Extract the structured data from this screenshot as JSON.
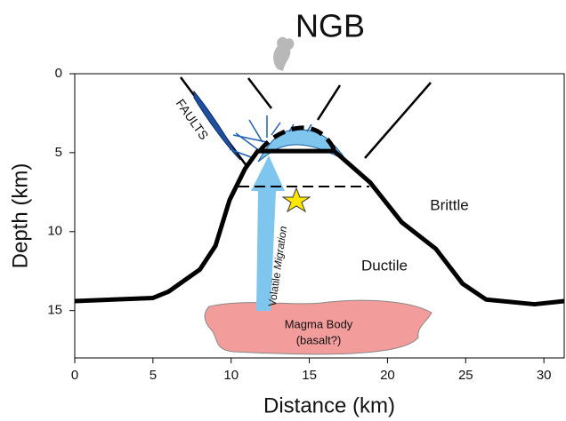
{
  "chart_data": {
    "type": "line",
    "title": "NGB",
    "x_label": "Distance (km)",
    "y_label": "Depth (km)",
    "x": [
      0,
      5,
      6,
      8,
      9,
      9.9,
      10.9,
      11.7,
      16.6,
      18.9,
      20.9,
      23.1,
      24.8,
      26.3,
      29.4,
      31.3
    ],
    "values": [
      14.4,
      14.2,
      13.8,
      12.4,
      10.9,
      8,
      6,
      4.9,
      4.9,
      6.9,
      9.4,
      11.1,
      13.3,
      14.3,
      14.6,
      14.4
    ],
    "color": "#000000",
    "xlim": [
      0,
      31.3
    ],
    "ylim": [
      18,
      0
    ],
    "xticks": [
      0,
      5,
      10,
      15,
      20,
      25,
      30
    ],
    "yticks": [
      0,
      5,
      10,
      15
    ],
    "annotations": {
      "faults": "FAULTS",
      "brittle": "Brittle",
      "ductile": "Ductile",
      "volatile": "Volatile",
      "migration": "Migration",
      "magma": "Magma Body",
      "basalt": "(basalt?)"
    }
  }
}
